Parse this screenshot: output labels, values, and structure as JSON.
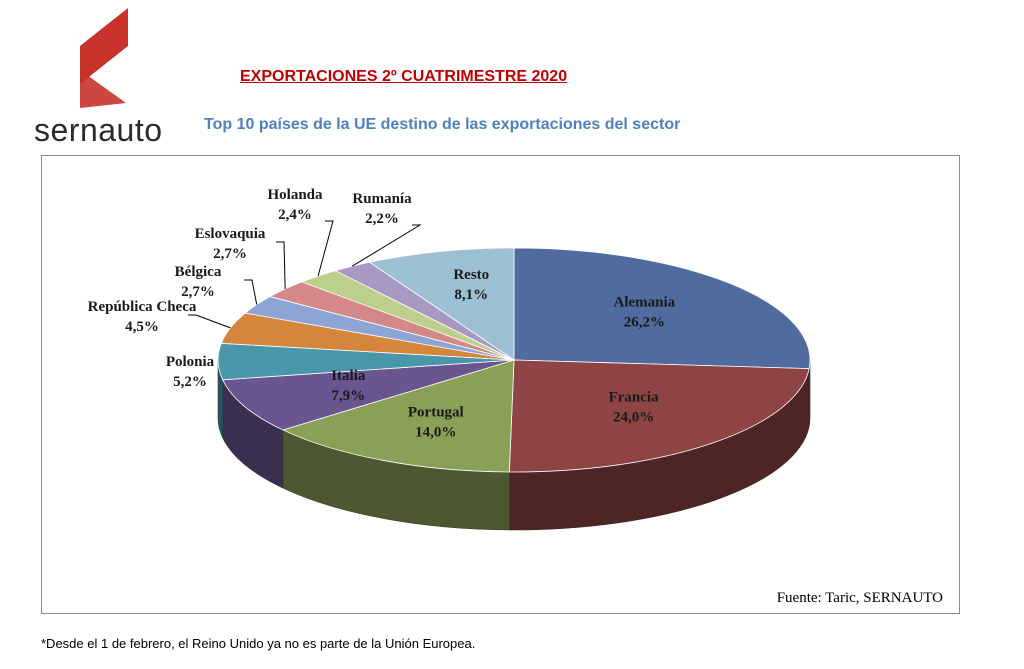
{
  "logo": {
    "text": "sernauto"
  },
  "title": "EXPORTACIONES 2º CUATRIMESTRE 2020",
  "subtitle": "Top 10 países de la UE destino de las exportaciones del sector",
  "source": "Fuente: Taric, SERNAUTO",
  "footnote": "*Desde el 1 de febrero, el Reino Unido ya no es parte de la Unión Europea.",
  "chart_data": {
    "type": "pie",
    "title": "Top 10 países de la UE destino de las exportaciones del sector",
    "slices": [
      {
        "label": "Alemania",
        "value": 26.2,
        "text": "26,2%",
        "color": "#4f6ba0"
      },
      {
        "label": "Francia",
        "value": 24.0,
        "text": "24,0%",
        "color": "#8e4444"
      },
      {
        "label": "Portugal",
        "value": 14.0,
        "text": "14,0%",
        "color": "#8ba057"
      },
      {
        "label": "Italia",
        "value": 7.9,
        "text": "7,9%",
        "color": "#6a5590"
      },
      {
        "label": "Polonia",
        "value": 5.2,
        "text": "5,2%",
        "color": "#4a97ab"
      },
      {
        "label": "República Checa",
        "value": 4.5,
        "text": "4,5%",
        "color": "#d5853c"
      },
      {
        "label": "Bélgica",
        "value": 2.7,
        "text": "2,7%",
        "color": "#8ca5d4"
      },
      {
        "label": "Eslovaquia",
        "value": 2.7,
        "text": "2,7%",
        "color": "#d48888"
      },
      {
        "label": "Holanda",
        "value": 2.4,
        "text": "2,4%",
        "color": "#bccf8c"
      },
      {
        "label": "Rumanía",
        "value": 2.2,
        "text": "2,2%",
        "color": "#a899c4"
      },
      {
        "label": "Resto",
        "value": 8.1,
        "text": "8,1%",
        "color": "#9cbfd4"
      }
    ],
    "start": "12 o'clock, clockwise",
    "style": "3d"
  }
}
